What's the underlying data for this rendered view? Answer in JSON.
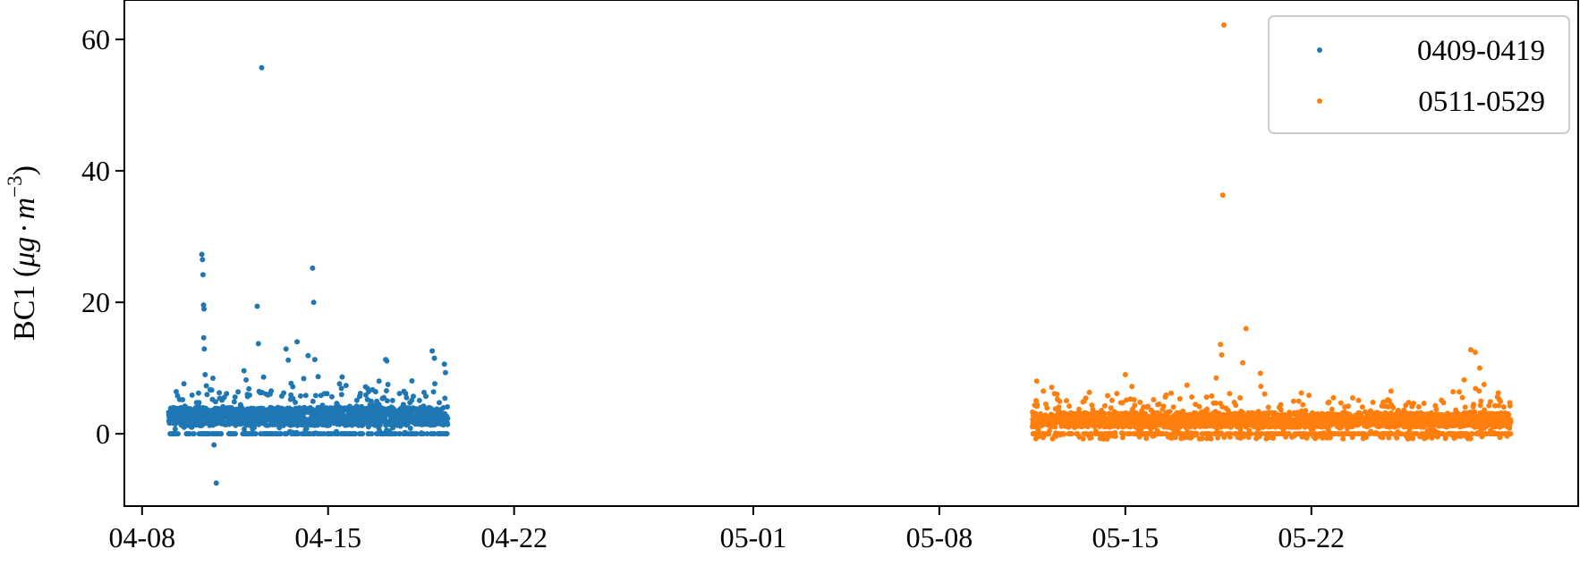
{
  "chart_data": {
    "type": "scatter",
    "title": "",
    "xlabel": "",
    "ylabel": {
      "prefix": "BC1 (",
      "unit_main": "μg",
      "dot": "·",
      "unit_m": "m",
      "exponent": "−3",
      "suffix": ")"
    },
    "x_axis": {
      "type": "date",
      "xlim": [
        "2024-04-07T08:00",
        "2024-06-01T01:00"
      ],
      "ticks": [
        {
          "date": "2024-04-08",
          "label": "04-08"
        },
        {
          "date": "2024-04-15",
          "label": "04-15"
        },
        {
          "date": "2024-04-22",
          "label": "04-22"
        },
        {
          "date": "2024-05-01",
          "label": "05-01"
        },
        {
          "date": "2024-05-08",
          "label": "05-08"
        },
        {
          "date": "2024-05-15",
          "label": "05-15"
        },
        {
          "date": "2024-05-22",
          "label": "05-22"
        }
      ]
    },
    "y_axis": {
      "ylim": [
        -11,
        66
      ],
      "ticks": [
        0,
        20,
        40,
        60
      ]
    },
    "grid": false,
    "legend": {
      "placement": "top-right"
    },
    "series": [
      {
        "name": "0409-0419",
        "color": "#1f77b4",
        "start": "2024-04-09T00:00",
        "end": "2024-04-19T12:00",
        "typical_range": [
          0,
          5
        ],
        "points": [
          {
            "x": "2024-04-10T06:00",
            "y": 27.3
          },
          {
            "x": "2024-04-10T06:30",
            "y": 26.5
          },
          {
            "x": "2024-04-10T07:00",
            "y": 24.2
          },
          {
            "x": "2024-04-10T07:30",
            "y": 19.6
          },
          {
            "x": "2024-04-10T08:00",
            "y": 19.0
          },
          {
            "x": "2024-04-10T07:40",
            "y": 14.6
          },
          {
            "x": "2024-04-10T08:10",
            "y": 12.9
          },
          {
            "x": "2024-04-10T09:00",
            "y": 9.0
          },
          {
            "x": "2024-04-10T03:00",
            "y": 6.2
          },
          {
            "x": "2024-04-10T10:00",
            "y": 7.3
          },
          {
            "x": "2024-04-10T19:00",
            "y": -7.5
          },
          {
            "x": "2024-04-10T17:00",
            "y": -1.7
          },
          {
            "x": "2024-04-11T12:00",
            "y": 5.6
          },
          {
            "x": "2024-04-11T20:00",
            "y": 9.6
          },
          {
            "x": "2024-04-11T22:00",
            "y": 8.2
          },
          {
            "x": "2024-04-12T08:00",
            "y": 19.4
          },
          {
            "x": "2024-04-12T09:00",
            "y": 13.7
          },
          {
            "x": "2024-04-12T12:00",
            "y": 55.7
          },
          {
            "x": "2024-04-13T10:00",
            "y": 12.9
          },
          {
            "x": "2024-04-13T12:00",
            "y": 11.2
          },
          {
            "x": "2024-04-13T20:00",
            "y": 14.0
          },
          {
            "x": "2024-04-14T02:00",
            "y": 8.4
          },
          {
            "x": "2024-04-14T06:00",
            "y": 11.9
          },
          {
            "x": "2024-04-14T10:00",
            "y": 25.2
          },
          {
            "x": "2024-04-14T11:00",
            "y": 20.0
          },
          {
            "x": "2024-04-14T12:00",
            "y": 11.3
          },
          {
            "x": "2024-04-14T15:00",
            "y": 8.7
          },
          {
            "x": "2024-04-15T12:00",
            "y": 6.9
          },
          {
            "x": "2024-04-16T02:00",
            "y": 5.1
          },
          {
            "x": "2024-04-16T22:00",
            "y": 8.0
          },
          {
            "x": "2024-04-17T04:00",
            "y": 11.3
          },
          {
            "x": "2024-04-17T05:00",
            "y": 11.1
          },
          {
            "x": "2024-04-17T06:00",
            "y": 7.5
          },
          {
            "x": "2024-04-18T05:00",
            "y": 5.7
          },
          {
            "x": "2024-04-18T22:00",
            "y": 12.6
          },
          {
            "x": "2024-04-19T00:00",
            "y": 11.5
          },
          {
            "x": "2024-04-19T09:00",
            "y": 10.6
          },
          {
            "x": "2024-04-19T10:00",
            "y": 9.3
          }
        ]
      },
      {
        "name": "0511-0529",
        "color": "#ff7f0e",
        "start": "2024-05-11T12:00",
        "end": "2024-05-29T12:00",
        "typical_range": [
          0,
          4
        ],
        "points": [
          {
            "x": "2024-05-11T16:00",
            "y": 8.0
          },
          {
            "x": "2024-05-11T22:00",
            "y": 6.5
          },
          {
            "x": "2024-05-12T08:00",
            "y": 6.1
          },
          {
            "x": "2024-05-14T08:00",
            "y": 5.8
          },
          {
            "x": "2024-05-15T00:00",
            "y": 9.0
          },
          {
            "x": "2024-05-15T06:00",
            "y": 7.2
          },
          {
            "x": "2024-05-16T12:00",
            "y": 5.6
          },
          {
            "x": "2024-05-17T12:00",
            "y": 5.6
          },
          {
            "x": "2024-05-18T10:00",
            "y": 8.5
          },
          {
            "x": "2024-05-18T14:00",
            "y": 13.6
          },
          {
            "x": "2024-05-18T15:00",
            "y": 12.0
          },
          {
            "x": "2024-05-18T16:00",
            "y": 36.3
          },
          {
            "x": "2024-05-18T17:00",
            "y": 62.2
          },
          {
            "x": "2024-05-19T10:00",
            "y": 10.8
          },
          {
            "x": "2024-05-19T13:00",
            "y": 16.0
          },
          {
            "x": "2024-05-20T02:00",
            "y": 9.2
          },
          {
            "x": "2024-05-25T00:00",
            "y": 6.5
          },
          {
            "x": "2024-05-27T08:00",
            "y": 6.4
          },
          {
            "x": "2024-05-27T18:00",
            "y": 8.2
          },
          {
            "x": "2024-05-28T00:00",
            "y": 12.8
          },
          {
            "x": "2024-05-28T04:00",
            "y": 12.4
          },
          {
            "x": "2024-05-28T08:00",
            "y": 10.0
          },
          {
            "x": "2024-05-28T12:00",
            "y": 7.5
          },
          {
            "x": "2024-05-29T00:00",
            "y": 5.6
          }
        ]
      }
    ]
  }
}
